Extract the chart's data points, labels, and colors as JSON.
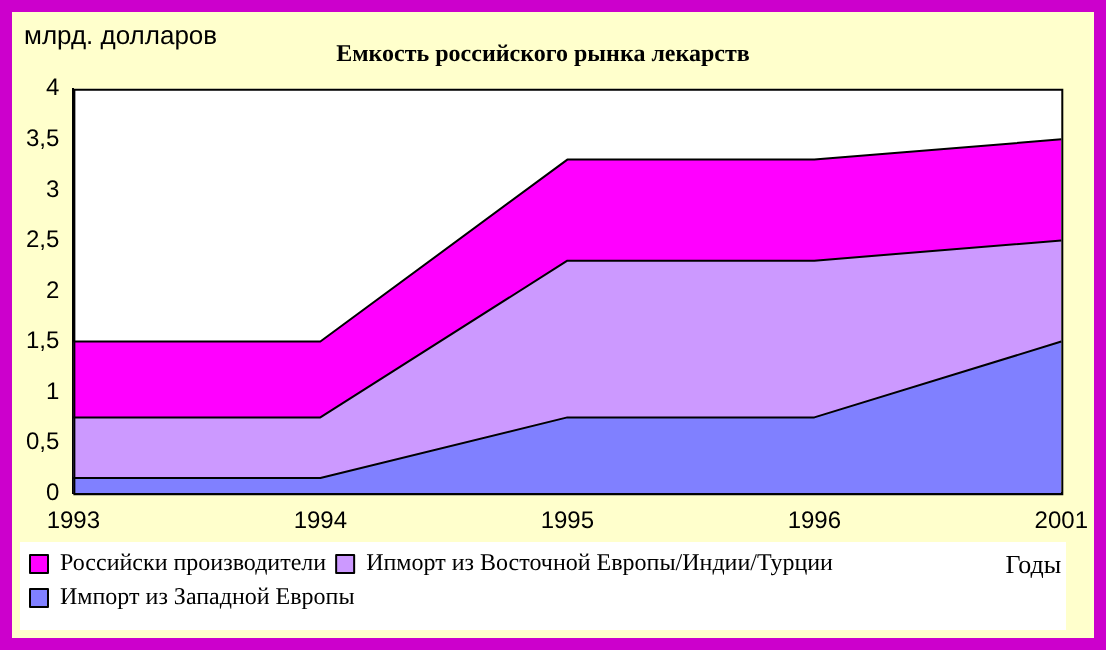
{
  "chart_data": {
    "type": "area",
    "stacked": true,
    "title": "Емкость российского рынка лекарств",
    "ylabel": "млрд. долларов",
    "xlabel": "Годы",
    "categories": [
      "1993",
      "1994",
      "1995",
      "1996",
      "2001"
    ],
    "ylim": [
      0,
      4
    ],
    "yticks": [
      0,
      {
        "value": 0.5,
        "label": "0,5"
      },
      1,
      {
        "value": 1.5,
        "label": "1,5"
      },
      2,
      {
        "value": 2.5,
        "label": "2,5"
      },
      3,
      {
        "value": 3.5,
        "label": "3,5"
      },
      4
    ],
    "grid": false,
    "legend": "bottom",
    "series": [
      {
        "name": "Импорт из Западной Европы",
        "color": "#8080ff",
        "values": [
          0.15,
          0.15,
          0.75,
          0.75,
          1.5
        ]
      },
      {
        "name": "Ипморт из Восточной Европы/Индии/Турции",
        "color": "#cc99ff",
        "values": [
          0.6,
          0.6,
          1.55,
          1.55,
          1.0
        ]
      },
      {
        "name": "Российски производители",
        "color": "#ff00ff",
        "values": [
          0.75,
          0.75,
          1.0,
          1.0,
          1.0
        ]
      }
    ]
  }
}
